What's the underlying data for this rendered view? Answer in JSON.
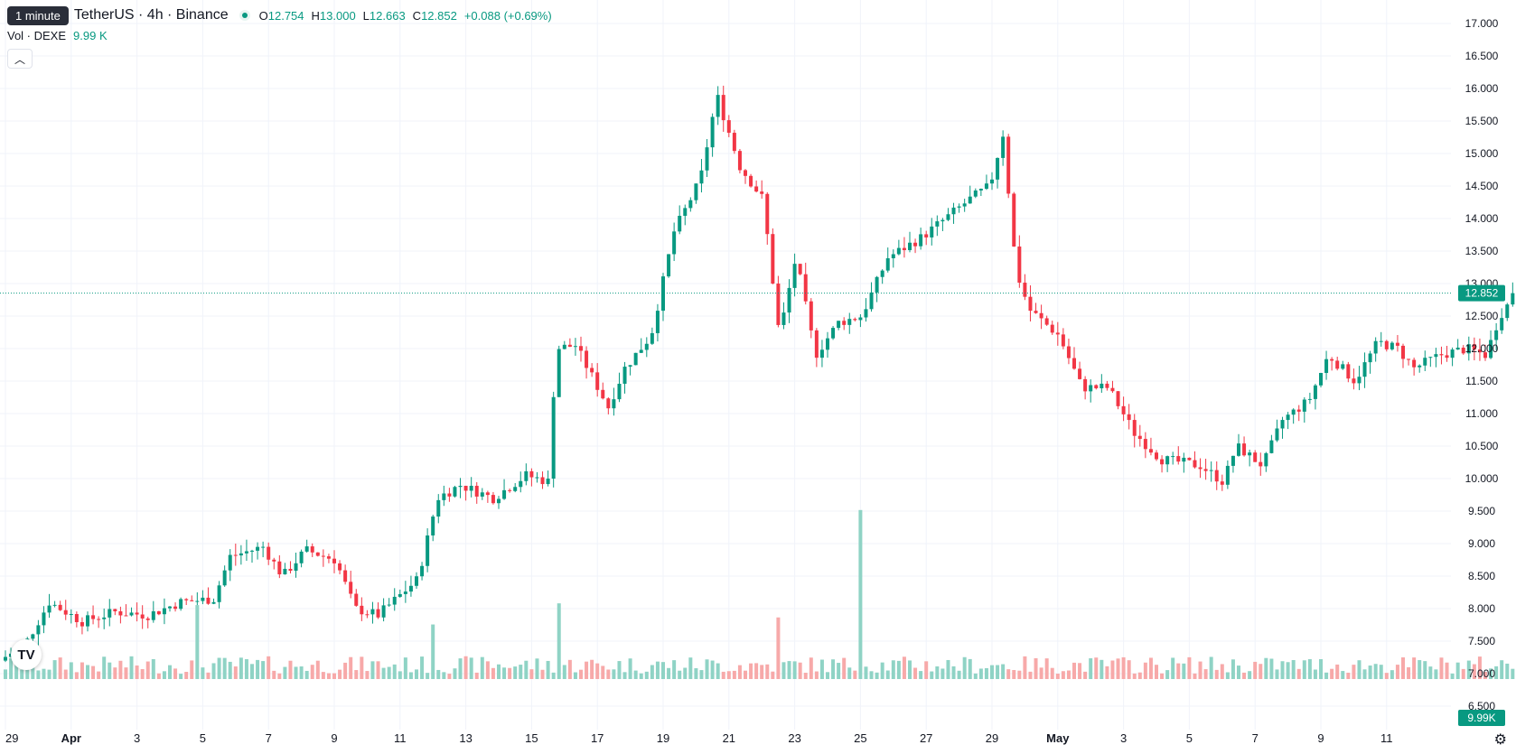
{
  "header": {
    "timeframe_tooltip": "1 minute",
    "symbol": "TetherUS · 4h · Binance",
    "ohlc": {
      "o_label": "O",
      "o": "12.754",
      "h_label": "H",
      "h": "13.000",
      "l_label": "L",
      "l": "12.663",
      "c_label": "C",
      "c": "12.852",
      "change": "+0.088 (+0.69%)"
    }
  },
  "volume_legend": {
    "label": "Vol · DEXE",
    "value": "9.99 K"
  },
  "collapse_icon": "chevron-up-icon",
  "logo": "TV",
  "colors": {
    "up": "#089981",
    "down": "#f23645",
    "vol_up": "#8fd3c5",
    "vol_down": "#f7a9a9",
    "grid": "#f0f3fa",
    "last": "#089981"
  },
  "chart_data": {
    "type": "candlestick",
    "interval": "4h",
    "y_axis": {
      "range": [
        5.9,
        17.3
      ],
      "ticks": [
        "6.500",
        "7.000",
        "7.500",
        "8.000",
        "8.500",
        "9.000",
        "9.500",
        "10.000",
        "10.500",
        "11.000",
        "11.500",
        "12.000",
        "12.500",
        "13.000",
        "13.500",
        "14.000",
        "14.500",
        "15.000",
        "15.500",
        "16.000",
        "16.500",
        "17.000"
      ],
      "position": "right"
    },
    "x_axis": {
      "ticks": [
        "29",
        "Apr",
        "3",
        "5",
        "7",
        "9",
        "11",
        "13",
        "15",
        "17",
        "19",
        "21",
        "23",
        "25",
        "27",
        "29",
        "May",
        "3",
        "5",
        "7",
        "9",
        "11"
      ],
      "bold_ticks": [
        "Apr",
        "May"
      ],
      "day_start": -2,
      "days_shown": 43.5
    },
    "last_price": {
      "value": 12.852,
      "label": "12.852"
    },
    "last_volume_label": "9.99K",
    "volume": {
      "max": 1000,
      "spike_value": 960,
      "low": 30,
      "high": 130,
      "notable_peaks": [
        {
          "day": 3.9,
          "value": 420,
          "dir": "down"
        },
        {
          "day": 11.0,
          "value": 310,
          "dir": "up"
        },
        {
          "day": 14.8,
          "value": 430,
          "dir": "up"
        },
        {
          "day": 21.5,
          "value": 350,
          "dir": "down"
        },
        {
          "day": 24.0,
          "value": 960,
          "dir": "down"
        }
      ]
    },
    "price_path": [
      [
        -2.0,
        7.2
      ],
      [
        -1.2,
        7.48
      ],
      [
        -0.5,
        8.1
      ],
      [
        0.5,
        7.8
      ],
      [
        1.5,
        7.95
      ],
      [
        2.5,
        7.9
      ],
      [
        3.5,
        8.1
      ],
      [
        4.5,
        8.15
      ],
      [
        5.0,
        8.8
      ],
      [
        6.0,
        8.95
      ],
      [
        6.6,
        8.5
      ],
      [
        7.3,
        8.9
      ],
      [
        8.2,
        8.75
      ],
      [
        8.8,
        8.0
      ],
      [
        9.5,
        7.9
      ],
      [
        10.7,
        8.45
      ],
      [
        11.3,
        9.7
      ],
      [
        12.0,
        9.9
      ],
      [
        13.0,
        9.7
      ],
      [
        14.0,
        10.05
      ],
      [
        14.7,
        9.95
      ],
      [
        14.9,
        12.0
      ],
      [
        15.5,
        12.05
      ],
      [
        16.5,
        11.1
      ],
      [
        17.0,
        11.7
      ],
      [
        17.8,
        12.2
      ],
      [
        18.5,
        13.8
      ],
      [
        19.3,
        14.6
      ],
      [
        19.8,
        15.9
      ],
      [
        20.5,
        14.8
      ],
      [
        21.2,
        14.3
      ],
      [
        21.7,
        12.2
      ],
      [
        22.2,
        13.4
      ],
      [
        22.8,
        11.9
      ],
      [
        23.5,
        12.4
      ],
      [
        24.2,
        12.5
      ],
      [
        25.0,
        13.4
      ],
      [
        26.0,
        13.7
      ],
      [
        27.5,
        14.3
      ],
      [
        28.1,
        14.5
      ],
      [
        28.5,
        15.3
      ],
      [
        28.9,
        13.2
      ],
      [
        29.3,
        12.6
      ],
      [
        30.2,
        12.2
      ],
      [
        30.9,
        11.4
      ],
      [
        31.7,
        11.4
      ],
      [
        32.5,
        10.7
      ],
      [
        33.3,
        10.3
      ],
      [
        34.5,
        10.2
      ],
      [
        35.2,
        9.95
      ],
      [
        35.6,
        10.5
      ],
      [
        36.4,
        10.2
      ],
      [
        37.0,
        10.9
      ],
      [
        37.8,
        11.2
      ],
      [
        38.4,
        11.9
      ],
      [
        39.2,
        11.5
      ],
      [
        39.9,
        12.1
      ],
      [
        40.5,
        12.0
      ],
      [
        41.0,
        11.7
      ],
      [
        41.8,
        11.9
      ],
      [
        42.6,
        12.0
      ],
      [
        43.2,
        11.9
      ],
      [
        43.6,
        12.5
      ],
      [
        44.1,
        12.85
      ]
    ]
  }
}
